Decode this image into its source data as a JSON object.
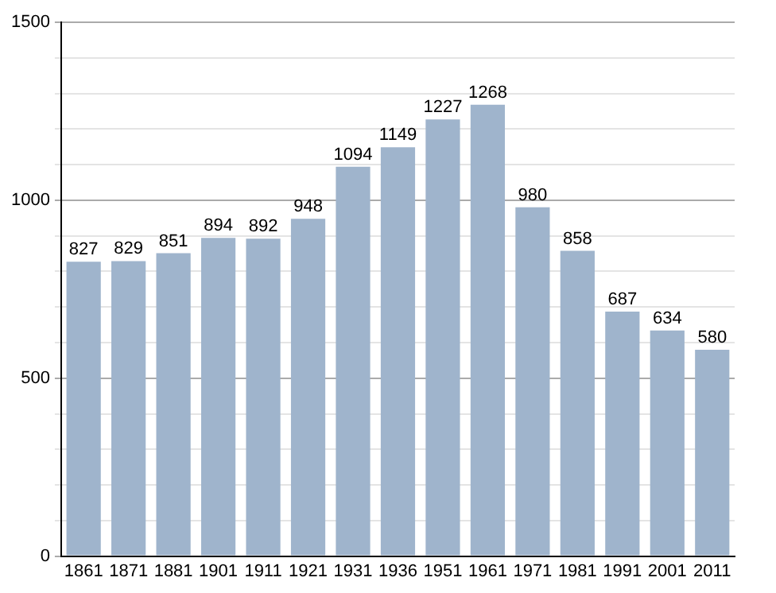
{
  "chart_data": {
    "type": "bar",
    "categories": [
      "1861",
      "1871",
      "1881",
      "1901",
      "1911",
      "1921",
      "1931",
      "1936",
      "1951",
      "1961",
      "1971",
      "1981",
      "1991",
      "2001",
      "2011"
    ],
    "values": [
      827,
      829,
      851,
      894,
      892,
      948,
      1094,
      1149,
      1227,
      1268,
      980,
      858,
      687,
      634,
      580
    ],
    "color": "#9fb4cc",
    "ylim": [
      0,
      1500
    ],
    "yticks": [
      0,
      {
        "value": 100,
        "label": null
      },
      {
        "value": 200,
        "label": null
      },
      {
        "value": 300,
        "label": null
      },
      {
        "value": 400,
        "label": null
      },
      500,
      {
        "value": 600,
        "label": null
      },
      {
        "value": 700,
        "label": null
      },
      {
        "value": 800,
        "label": null
      },
      {
        "value": 900,
        "label": null
      },
      1000,
      {
        "value": 1100,
        "label": null
      },
      {
        "value": 1200,
        "label": null
      },
      {
        "value": 1300,
        "label": null
      },
      {
        "value": 1400,
        "label": null
      },
      1500
    ],
    "grid": "y",
    "data_labels": true
  }
}
